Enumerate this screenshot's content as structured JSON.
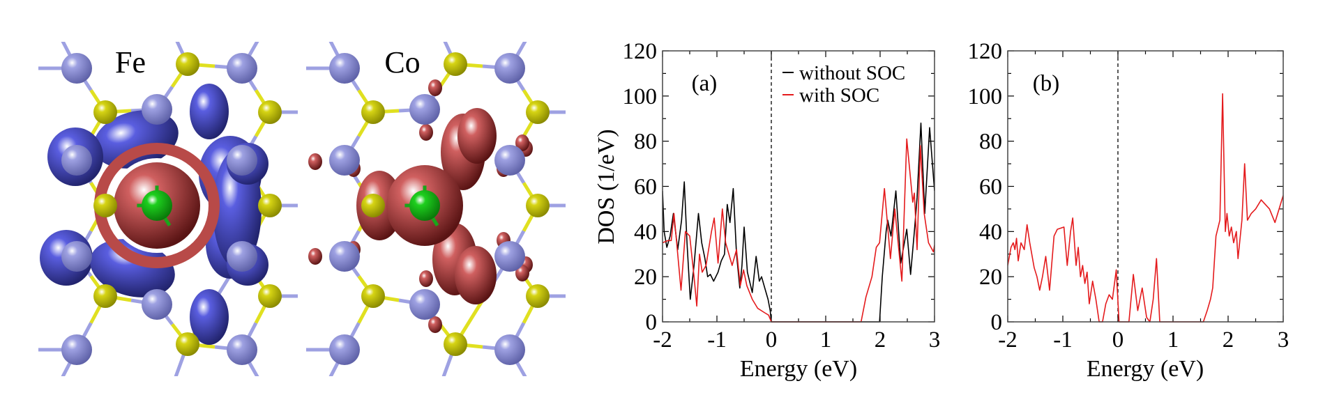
{
  "structure_panels": [
    {
      "label": "Fe",
      "density_color": "#4b4fc8"
    },
    {
      "label": "Co",
      "density_color": "#c0504d"
    }
  ],
  "colors": {
    "host_atom": "#9ea1e2",
    "ligand_atom": "#d6d414",
    "dopant_atom": "#1ecf1e",
    "bond_host": "#9ea1e2",
    "bond_ligand": "#e0e020",
    "without_soc": "#000000",
    "with_soc": "#e41a1c"
  },
  "chart_data": [
    {
      "type": "line",
      "panel_tag": "(a)",
      "xlabel": "Energy (eV)",
      "ylabel": "DOS (1/eV)",
      "xlim": [
        -2,
        3
      ],
      "ylim": [
        0,
        120
      ],
      "xticks": [
        "-2",
        "-1",
        "0",
        "1",
        "2",
        "3"
      ],
      "yticks": [
        "0",
        "20",
        "40",
        "60",
        "80",
        "100",
        "120"
      ],
      "fermi_level": 0,
      "legend_position": "top-right",
      "legend": [
        "without SOC",
        "with SOC"
      ],
      "series": [
        {
          "name": "without SOC",
          "color": "#000000",
          "points": [
            [
              -2,
              58
            ],
            [
              -1.97,
              40
            ],
            [
              -1.92,
              33
            ],
            [
              -1.86,
              38
            ],
            [
              -1.8,
              48
            ],
            [
              -1.72,
              32
            ],
            [
              -1.65,
              45
            ],
            [
              -1.6,
              62
            ],
            [
              -1.55,
              35
            ],
            [
              -1.49,
              10
            ],
            [
              -1.42,
              25
            ],
            [
              -1.34,
              48
            ],
            [
              -1.28,
              35
            ],
            [
              -1.22,
              28
            ],
            [
              -1.17,
              20
            ],
            [
              -1.12,
              21
            ],
            [
              -1.06,
              18
            ],
            [
              -0.98,
              22
            ],
            [
              -0.92,
              27
            ],
            [
              -0.86,
              30
            ],
            [
              -0.81,
              52
            ],
            [
              -0.76,
              44
            ],
            [
              -0.7,
              59
            ],
            [
              -0.64,
              30
            ],
            [
              -0.58,
              15
            ],
            [
              -0.54,
              25
            ],
            [
              -0.5,
              42
            ],
            [
              -0.44,
              22
            ],
            [
              -0.35,
              13
            ],
            [
              -0.28,
              29
            ],
            [
              -0.22,
              18
            ],
            [
              -0.18,
              20
            ],
            [
              -0.12,
              15
            ],
            [
              -0.06,
              10
            ],
            [
              -0.02,
              5
            ],
            [
              0,
              0
            ],
            [
              1.99,
              0
            ],
            [
              2.04,
              20
            ],
            [
              2.11,
              40
            ],
            [
              2.14,
              45
            ],
            [
              2.2,
              38
            ],
            [
              2.29,
              58
            ],
            [
              2.38,
              26
            ],
            [
              2.49,
              41
            ],
            [
              2.56,
              21
            ],
            [
              2.63,
              40
            ],
            [
              2.68,
              55
            ],
            [
              2.75,
              88
            ],
            [
              2.82,
              48
            ],
            [
              2.91,
              86
            ],
            [
              3,
              58
            ]
          ]
        },
        {
          "name": "with SOC",
          "color": "#e41a1c",
          "points": [
            [
              -2,
              35
            ],
            [
              -1.9,
              36
            ],
            [
              -1.84,
              36
            ],
            [
              -1.79,
              48
            ],
            [
              -1.74,
              35
            ],
            [
              -1.66,
              14
            ],
            [
              -1.58,
              40
            ],
            [
              -1.5,
              38
            ],
            [
              -1.42,
              20
            ],
            [
              -1.37,
              7
            ],
            [
              -1.32,
              30
            ],
            [
              -1.27,
              22
            ],
            [
              -1.2,
              25
            ],
            [
              -1.1,
              40
            ],
            [
              -1.05,
              46
            ],
            [
              -0.98,
              26
            ],
            [
              -0.9,
              50
            ],
            [
              -0.84,
              35
            ],
            [
              -0.72,
              25
            ],
            [
              -0.64,
              32
            ],
            [
              -0.57,
              16
            ],
            [
              -0.51,
              23
            ],
            [
              -0.45,
              16
            ],
            [
              -0.35,
              10
            ],
            [
              -0.25,
              6
            ],
            [
              -0.12,
              4
            ],
            [
              -0.05,
              3
            ],
            [
              0,
              0
            ],
            [
              1.65,
              0
            ],
            [
              1.74,
              11
            ],
            [
              1.85,
              20
            ],
            [
              1.93,
              33
            ],
            [
              1.99,
              35
            ],
            [
              2.08,
              59
            ],
            [
              2.19,
              28
            ],
            [
              2.27,
              50
            ],
            [
              2.4,
              18
            ],
            [
              2.49,
              81
            ],
            [
              2.6,
              53
            ],
            [
              2.63,
              57
            ],
            [
              2.68,
              32
            ],
            [
              2.74,
              78
            ],
            [
              2.81,
              48
            ],
            [
              2.89,
              35
            ],
            [
              2.98,
              31
            ],
            [
              3,
              34
            ]
          ]
        }
      ]
    },
    {
      "type": "line",
      "panel_tag": "(b)",
      "xlabel": "Energy (eV)",
      "ylabel": "",
      "xlim": [
        -2,
        3
      ],
      "ylim": [
        0,
        120
      ],
      "xticks": [
        "-2",
        "-1",
        "0",
        "1",
        "2",
        "3"
      ],
      "yticks": [
        "0",
        "20",
        "40",
        "60",
        "80",
        "100",
        "120"
      ],
      "fermi_level": 0,
      "series": [
        {
          "name": "with SOC",
          "color": "#e41a1c",
          "points": [
            [
              -2,
              25
            ],
            [
              -1.94,
              33
            ],
            [
              -1.9,
              35
            ],
            [
              -1.87,
              32
            ],
            [
              -1.84,
              37
            ],
            [
              -1.81,
              27
            ],
            [
              -1.76,
              35
            ],
            [
              -1.7,
              32
            ],
            [
              -1.65,
              43
            ],
            [
              -1.6,
              35
            ],
            [
              -1.52,
              24
            ],
            [
              -1.47,
              20
            ],
            [
              -1.42,
              14
            ],
            [
              -1.37,
              20
            ],
            [
              -1.31,
              29
            ],
            [
              -1.24,
              14
            ],
            [
              -1.16,
              38
            ],
            [
              -1.1,
              41
            ],
            [
              -0.98,
              42
            ],
            [
              -0.92,
              25
            ],
            [
              -0.86,
              40
            ],
            [
              -0.82,
              46
            ],
            [
              -0.76,
              25
            ],
            [
              -0.72,
              33
            ],
            [
              -0.68,
              20
            ],
            [
              -0.64,
              25
            ],
            [
              -0.6,
              17
            ],
            [
              -0.56,
              22
            ],
            [
              -0.52,
              8
            ],
            [
              -0.46,
              18
            ],
            [
              -0.4,
              10
            ],
            [
              -0.34,
              0
            ],
            [
              -0.28,
              0
            ],
            [
              -0.22,
              8
            ],
            [
              -0.16,
              12
            ],
            [
              -0.1,
              10
            ],
            [
              -0.03,
              23
            ],
            [
              0.02,
              0
            ],
            [
              0.2,
              0
            ],
            [
              0.28,
              21
            ],
            [
              0.36,
              5
            ],
            [
              0.44,
              15
            ],
            [
              0.52,
              2
            ],
            [
              0.58,
              0
            ],
            [
              0.64,
              10
            ],
            [
              0.7,
              28
            ],
            [
              0.76,
              0
            ],
            [
              1.55,
              0
            ],
            [
              1.62,
              5
            ],
            [
              1.68,
              10
            ],
            [
              1.72,
              15
            ],
            [
              1.78,
              38
            ],
            [
              1.85,
              45
            ],
            [
              1.9,
              101
            ],
            [
              1.95,
              40
            ],
            [
              1.98,
              48
            ],
            [
              2.02,
              38
            ],
            [
              2.06,
              42
            ],
            [
              2.1,
              35
            ],
            [
              2.15,
              40
            ],
            [
              2.18,
              28
            ],
            [
              2.25,
              45
            ],
            [
              2.3,
              70
            ],
            [
              2.35,
              45
            ],
            [
              2.42,
              48
            ],
            [
              2.5,
              50
            ],
            [
              2.6,
              54
            ],
            [
              2.75,
              50
            ],
            [
              2.85,
              44
            ],
            [
              3,
              56
            ]
          ]
        }
      ]
    }
  ]
}
